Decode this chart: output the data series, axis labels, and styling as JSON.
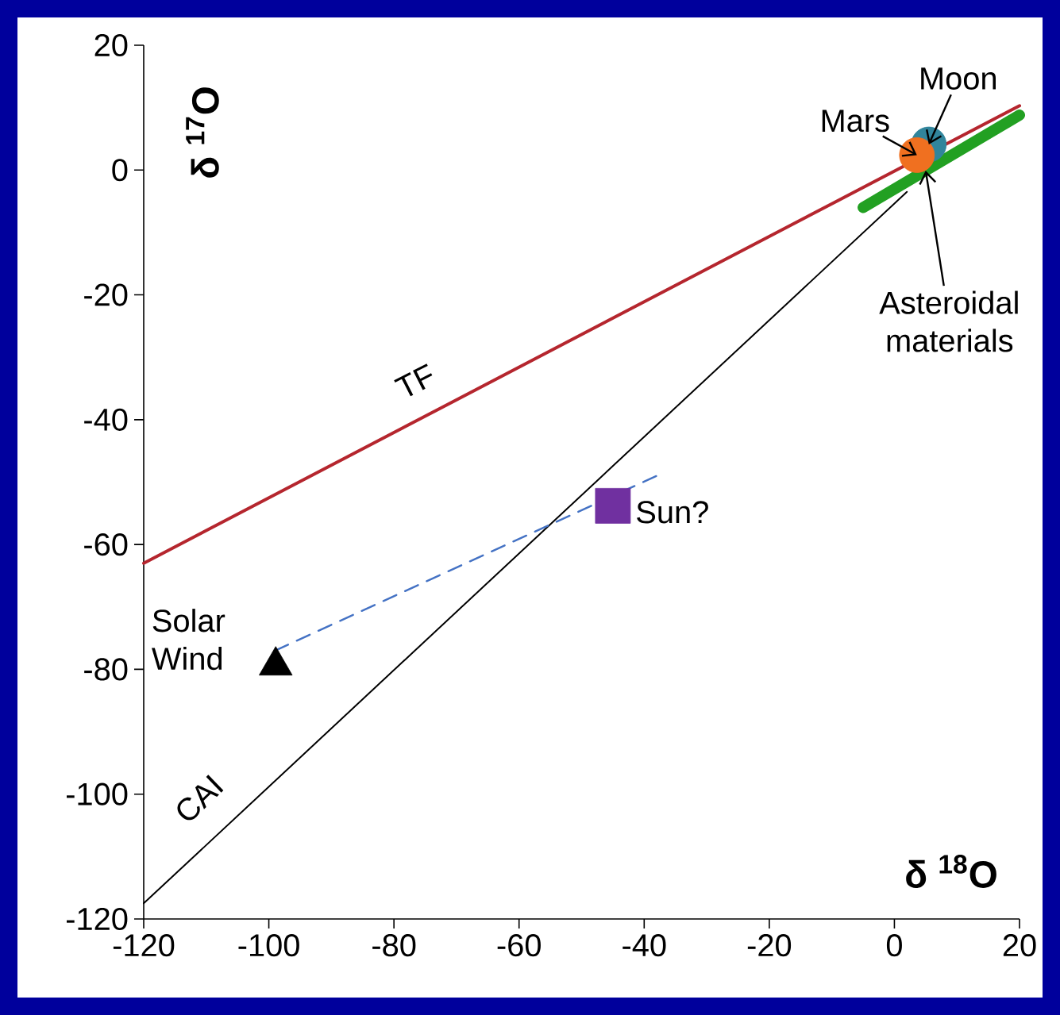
{
  "chart_data": {
    "type": "line",
    "xlabel": "δ $^{18}$O",
    "ylabel": "δ $^{17}$O",
    "xlim": [
      -120,
      20
    ],
    "ylim": [
      -120,
      20
    ],
    "xticks": [
      -120,
      -100,
      -80,
      -60,
      -40,
      -20,
      0,
      20
    ],
    "yticks": [
      -120,
      -100,
      -80,
      -60,
      -40,
      -20,
      0,
      20
    ],
    "series": [
      {
        "color": "#b5262e",
        "x": [
          -120,
          20
        ],
        "values": [
          -63,
          10.3
        ],
        "line_style": "solid"
      },
      {
        "color": "#000000",
        "x": [
          -120,
          2
        ],
        "values": [
          -117.5,
          -3.5
        ],
        "line_style": "solid"
      },
      {
        "color": "#4472c4",
        "x": [
          -99,
          -38
        ],
        "values": [
          -77,
          -49
        ],
        "line_style": "dashed"
      },
      {
        "color": "#22a022",
        "x": [
          -5,
          20
        ],
        "values": [
          -6,
          8.8
        ],
        "line_style": "solid"
      },
      {
        "type": "scatter",
        "color": "#31859c",
        "x": [
          5.5
        ],
        "values": [
          4.1
        ],
        "marker": "circle"
      },
      {
        "type": "scatter",
        "color": "#f07020",
        "x": [
          3.6
        ],
        "values": [
          2.4
        ],
        "marker": "circle"
      },
      {
        "type": "scatter",
        "color": "#7030a0",
        "x": [
          -45
        ],
        "values": [
          -53.8
        ],
        "marker": "square"
      },
      {
        "type": "scatter",
        "color": "#000000",
        "x": [
          -98.9
        ],
        "values": [
          -79.4
        ],
        "marker": "triangle"
      }
    ],
    "annotations": [
      {
        "text": "TF",
        "x": -75,
        "y": -39.5
      },
      {
        "text": "CAI",
        "x": -107,
        "y": -105
      },
      {
        "text": "Sun?",
        "x": -45,
        "y": -53.8
      },
      "Solar Wind",
      {
        "text": "Mars",
        "x": 3.6,
        "y": 2.4
      },
      {
        "text": "Moon",
        "x": 5.5,
        "y": 4.1
      },
      {
        "text": "Asteroidal materials",
        "x": 5,
        "y": -0.1
      }
    ]
  }
}
